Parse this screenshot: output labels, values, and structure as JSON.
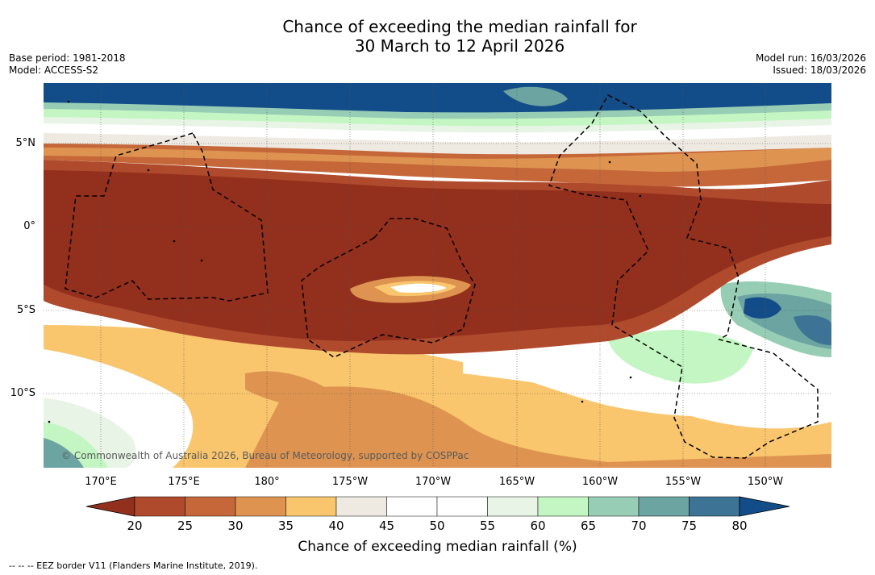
{
  "title": {
    "line1": "Chance of exceeding the median rainfall for",
    "line2": "30 March to 12 April 2026"
  },
  "meta": {
    "base_period": "Base period: 1981-2018",
    "model": "Model: ACCESS-S2",
    "model_run": "Model run: 16/03/2026",
    "issued": "Issued: 18/03/2026"
  },
  "axes": {
    "lat_labels": [
      "5°N",
      "0°",
      "5°S",
      "10°S"
    ],
    "lon_labels": [
      "170°E",
      "175°E",
      "180°",
      "175°W",
      "170°W",
      "165°W",
      "160°W",
      "155°W",
      "150°W"
    ]
  },
  "colorbar": {
    "ticks": [
      "20",
      "25",
      "30",
      "35",
      "40",
      "45",
      "50",
      "55",
      "60",
      "65",
      "70",
      "75",
      "80"
    ],
    "colors": [
      "#932f1d",
      "#b04a2c",
      "#c6673a",
      "#de9450",
      "#f9c56d",
      "#eeeae2",
      "#ffffff",
      "#ffffff",
      "#e8f4e6",
      "#c3f6c3",
      "#98cdb5",
      "#6ba4a1",
      "#3d7394",
      "#134d89"
    ],
    "label": "Chance of exceeding median rainfall (%)"
  },
  "map": {
    "copyright": "© Commonwealth of Australia 2026, Bureau of Meteorology, supported by COSPPac",
    "legend_note": "--  --  -- EEZ border V11 (Flanders Marine Institute, 2019)."
  }
}
